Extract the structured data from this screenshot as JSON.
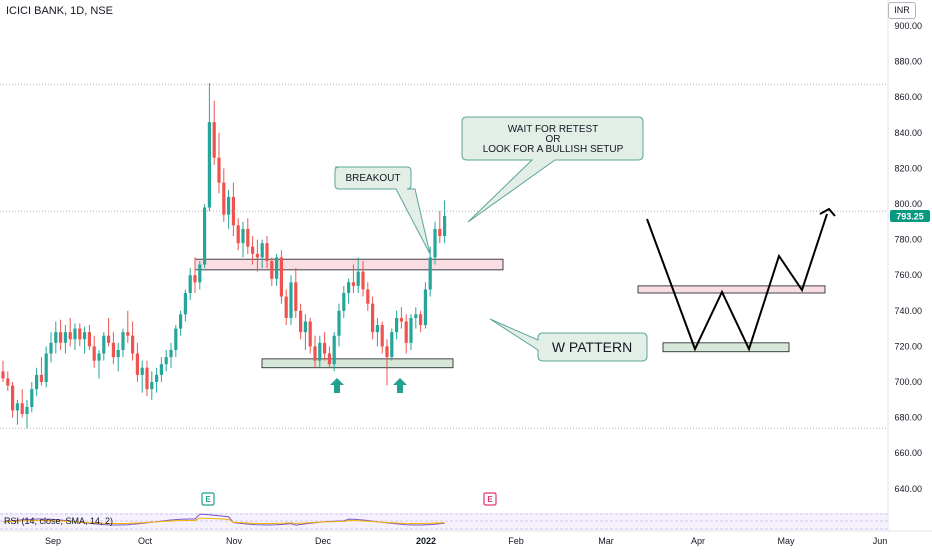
{
  "header": {
    "title": "ICICI BANK, 1D, NSE",
    "currency": "INR"
  },
  "price_badge": {
    "value": "793.25",
    "color": "#089981"
  },
  "annotations": {
    "breakout": "BREAKOUT",
    "retest": [
      "WAIT FOR RETEST",
      "OR",
      "LOOK FOR A BULLISH SETUP"
    ],
    "w_pattern": "W PATTERN",
    "earnings_marker": "E"
  },
  "indicator": {
    "label": "RSI (14, close, SMA, 14, 2)"
  },
  "colors": {
    "up": "#26a69a",
    "down": "#ef5350",
    "resistance_zone": "#f8dde2",
    "support_zone": "#d8e8d8",
    "callout_fill": "#e3efe6",
    "callout_border": "#5aa59a",
    "arrow": "#22a090"
  },
  "chart_data": {
    "type": "candlestick",
    "title": "ICICI BANK, 1D, NSE",
    "y_ticks": [
      640,
      660,
      680,
      700,
      720,
      740,
      760,
      780,
      800,
      820,
      840,
      860,
      880,
      900
    ],
    "ylim": [
      626,
      916
    ],
    "x_labels": [
      "Sep",
      "Oct",
      "Nov",
      "Dec",
      "2022",
      "Feb",
      "Mar",
      "Apr",
      "May",
      "Jun"
    ],
    "last_price": 793.25,
    "horizontal_levels": [
      867,
      796,
      674
    ],
    "candles": [
      [
        706,
        712,
        700,
        702
      ],
      [
        702,
        706,
        695,
        698
      ],
      [
        698,
        700,
        680,
        684
      ],
      [
        684,
        690,
        676,
        688
      ],
      [
        688,
        696,
        680,
        682
      ],
      [
        682,
        690,
        674,
        686
      ],
      [
        686,
        700,
        683,
        696
      ],
      [
        696,
        708,
        692,
        704
      ],
      [
        704,
        714,
        698,
        700
      ],
      [
        700,
        720,
        697,
        716
      ],
      [
        716,
        728,
        711,
        722
      ],
      [
        722,
        734,
        716,
        728
      ],
      [
        728,
        735,
        718,
        722
      ],
      [
        722,
        732,
        716,
        728
      ],
      [
        728,
        736,
        720,
        724
      ],
      [
        724,
        733,
        718,
        730
      ],
      [
        730,
        733,
        720,
        724
      ],
      [
        724,
        731,
        716,
        728
      ],
      [
        728,
        732,
        718,
        720
      ],
      [
        720,
        726,
        708,
        712
      ],
      [
        712,
        718,
        702,
        716
      ],
      [
        716,
        728,
        712,
        726
      ],
      [
        726,
        736,
        720,
        722
      ],
      [
        722,
        728,
        710,
        714
      ],
      [
        714,
        722,
        706,
        718
      ],
      [
        718,
        730,
        714,
        728
      ],
      [
        728,
        740,
        722,
        726
      ],
      [
        726,
        734,
        712,
        716
      ],
      [
        716,
        722,
        700,
        704
      ],
      [
        704,
        712,
        694,
        708
      ],
      [
        708,
        712,
        692,
        696
      ],
      [
        696,
        706,
        690,
        700
      ],
      [
        700,
        708,
        694,
        704
      ],
      [
        704,
        714,
        700,
        710
      ],
      [
        710,
        718,
        706,
        714
      ],
      [
        714,
        722,
        708,
        718
      ],
      [
        718,
        732,
        714,
        730
      ],
      [
        730,
        740,
        726,
        738
      ],
      [
        738,
        752,
        734,
        750
      ],
      [
        750,
        764,
        746,
        760
      ],
      [
        760,
        770,
        750,
        756
      ],
      [
        756,
        768,
        752,
        766
      ],
      [
        766,
        800,
        764,
        798
      ],
      [
        798,
        868,
        796,
        846
      ],
      [
        846,
        858,
        822,
        826
      ],
      [
        826,
        840,
        806,
        812
      ],
      [
        812,
        820,
        790,
        794
      ],
      [
        794,
        808,
        786,
        804
      ],
      [
        804,
        812,
        782,
        788
      ],
      [
        788,
        792,
        774,
        778
      ],
      [
        778,
        790,
        770,
        786
      ],
      [
        786,
        792,
        772,
        776
      ],
      [
        776,
        782,
        766,
        772
      ],
      [
        772,
        780,
        762,
        770
      ],
      [
        770,
        780,
        764,
        778
      ],
      [
        778,
        782,
        764,
        768
      ],
      [
        768,
        770,
        754,
        758
      ],
      [
        758,
        772,
        754,
        770
      ],
      [
        770,
        774,
        744,
        748
      ],
      [
        748,
        752,
        732,
        736
      ],
      [
        736,
        760,
        732,
        756
      ],
      [
        756,
        764,
        736,
        740
      ],
      [
        740,
        744,
        724,
        728
      ],
      [
        728,
        738,
        718,
        734
      ],
      [
        734,
        736,
        716,
        720
      ],
      [
        720,
        726,
        708,
        712
      ],
      [
        712,
        726,
        708,
        722
      ],
      [
        722,
        728,
        712,
        716
      ],
      [
        716,
        720,
        708,
        710
      ],
      [
        710,
        728,
        706,
        726
      ],
      [
        726,
        744,
        720,
        740
      ],
      [
        740,
        754,
        736,
        750
      ],
      [
        750,
        758,
        744,
        756
      ],
      [
        756,
        766,
        750,
        754
      ],
      [
        754,
        770,
        750,
        762
      ],
      [
        762,
        768,
        748,
        752
      ],
      [
        752,
        756,
        740,
        744
      ],
      [
        744,
        748,
        724,
        728
      ],
      [
        728,
        736,
        720,
        732
      ],
      [
        732,
        734,
        716,
        720
      ],
      [
        720,
        724,
        698,
        714
      ],
      [
        714,
        730,
        712,
        728
      ],
      [
        728,
        740,
        724,
        736
      ],
      [
        736,
        742,
        730,
        734
      ],
      [
        734,
        738,
        716,
        722
      ],
      [
        722,
        738,
        718,
        736
      ],
      [
        736,
        742,
        730,
        738
      ],
      [
        738,
        740,
        728,
        732
      ],
      [
        732,
        756,
        730,
        752
      ],
      [
        752,
        776,
        748,
        770
      ],
      [
        770,
        790,
        766,
        786
      ],
      [
        786,
        796,
        778,
        782
      ],
      [
        782,
        802,
        778,
        793.25
      ]
    ],
    "series": [
      {
        "name": "RSI (14, close, SMA, 14, 2)"
      }
    ]
  }
}
